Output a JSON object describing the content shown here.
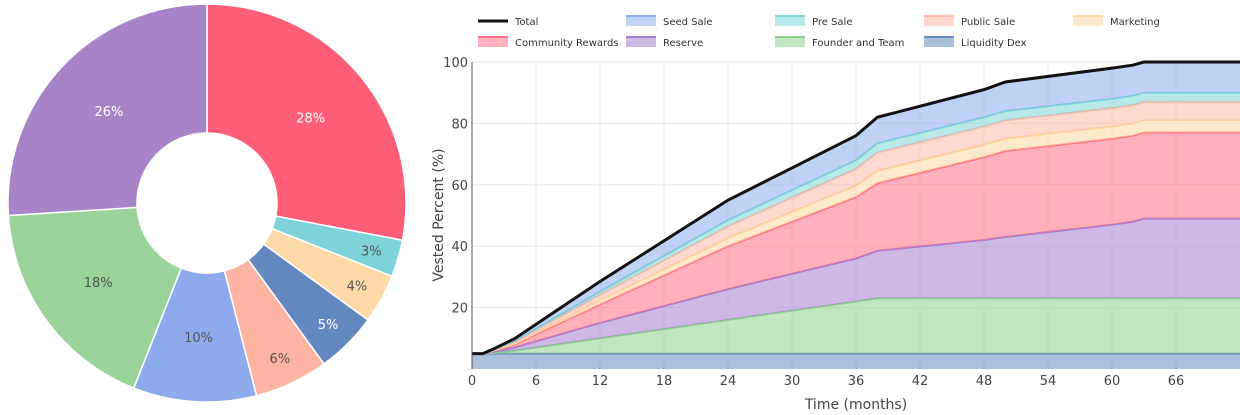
{
  "chart_data": [
    {
      "type": "pie",
      "donut": true,
      "slices": [
        {
          "label": "28%",
          "value": 28,
          "color": "#ff5e78",
          "label_color": "#ffffff"
        },
        {
          "label": "3%",
          "value": 3,
          "color": "#7dd3d8",
          "label_color": "#555555"
        },
        {
          "label": "4%",
          "value": 4,
          "color": "#fdd9a8",
          "label_color": "#555555"
        },
        {
          "label": "5%",
          "value": 5,
          "color": "#6388c0",
          "label_color": "#ffffff"
        },
        {
          "label": "6%",
          "value": 6,
          "color": "#feb4a2",
          "label_color": "#555555"
        },
        {
          "label": "10%",
          "value": 10,
          "color": "#8dabec",
          "label_color": "#555555"
        },
        {
          "label": "18%",
          "value": 18,
          "color": "#9ad39a",
          "label_color": "#555555"
        },
        {
          "label": "26%",
          "value": 26,
          "color": "#a783c7",
          "label_color": "#ffffff"
        }
      ]
    },
    {
      "type": "area",
      "stacked": true,
      "xlabel": "Time (months)",
      "ylabel": "Vested Percent (%)",
      "xlim": [
        0,
        72
      ],
      "ylim": [
        0,
        100
      ],
      "xticks": [
        0,
        6,
        12,
        18,
        24,
        30,
        36,
        42,
        48,
        54,
        60,
        66
      ],
      "yticks": [
        20,
        40,
        60,
        80,
        100
      ],
      "grid": true,
      "legend_position": "top",
      "x": [
        0,
        1,
        2,
        4,
        12,
        24,
        36,
        38,
        48,
        50,
        60,
        62,
        63,
        72
      ],
      "series": [
        {
          "name": "Liquidity Dex",
          "color": "#6a8cbd",
          "values": [
            5,
            5,
            5,
            5,
            5,
            5,
            5,
            5,
            5,
            5,
            5,
            5,
            5,
            5
          ]
        },
        {
          "name": "Founder and Team",
          "color": "#8fd18f",
          "values": [
            0,
            0,
            0.3,
            1,
            5,
            11,
            17,
            18,
            18,
            18,
            18,
            18,
            18,
            18
          ]
        },
        {
          "name": "Reserve",
          "color": "#a57fd0",
          "values": [
            0,
            0,
            0.3,
            1,
            5,
            10,
            14,
            15.5,
            19,
            20,
            24,
            25,
            26,
            26
          ]
        },
        {
          "name": "Community Rewards",
          "color": "#ff6f85",
          "values": [
            0,
            0,
            0.3,
            1,
            6,
            14,
            20,
            22,
            27,
            28,
            28,
            28,
            28,
            28
          ]
        },
        {
          "name": "Marketing",
          "color": "#fdd9a0",
          "values": [
            0,
            0,
            0.1,
            0.3,
            1.3,
            2.6,
            3.7,
            4,
            4,
            4,
            4,
            4,
            4,
            4
          ]
        },
        {
          "name": "Public Sale",
          "color": "#ffb8a8",
          "values": [
            0,
            0,
            0.15,
            0.5,
            1.9,
            3.9,
            5.5,
            6,
            6,
            6,
            6,
            6,
            6,
            6
          ]
        },
        {
          "name": "Pre Sale",
          "color": "#7fd6d6",
          "values": [
            0,
            0,
            0.1,
            0.3,
            1,
            2,
            2.8,
            3,
            3,
            3,
            3,
            3,
            3,
            3
          ]
        },
        {
          "name": "Seed Sale",
          "color": "#8dabef",
          "values": [
            0,
            0,
            0.25,
            0.8,
            3.3,
            6.5,
            8,
            8.5,
            9,
            9.5,
            10,
            10,
            10,
            10
          ]
        }
      ],
      "total": {
        "name": "Total",
        "color": "#111111"
      },
      "legend": [
        {
          "name": "Total",
          "color": "#111111",
          "kind": "line"
        },
        {
          "name": "Seed Sale",
          "color": "#8dabef",
          "kind": "area"
        },
        {
          "name": "Pre Sale",
          "color": "#7fd6d6",
          "kind": "area"
        },
        {
          "name": "Public Sale",
          "color": "#ffb8a8",
          "kind": "area"
        },
        {
          "name": "Marketing",
          "color": "#fdd9a0",
          "kind": "area"
        },
        {
          "name": "Community Rewards",
          "color": "#ff6f85",
          "kind": "area"
        },
        {
          "name": "Reserve",
          "color": "#a57fd0",
          "kind": "area"
        },
        {
          "name": "Founder and Team",
          "color": "#8fd18f",
          "kind": "area"
        },
        {
          "name": "Liquidity Dex",
          "color": "#6a8cbd",
          "kind": "area"
        }
      ]
    }
  ]
}
